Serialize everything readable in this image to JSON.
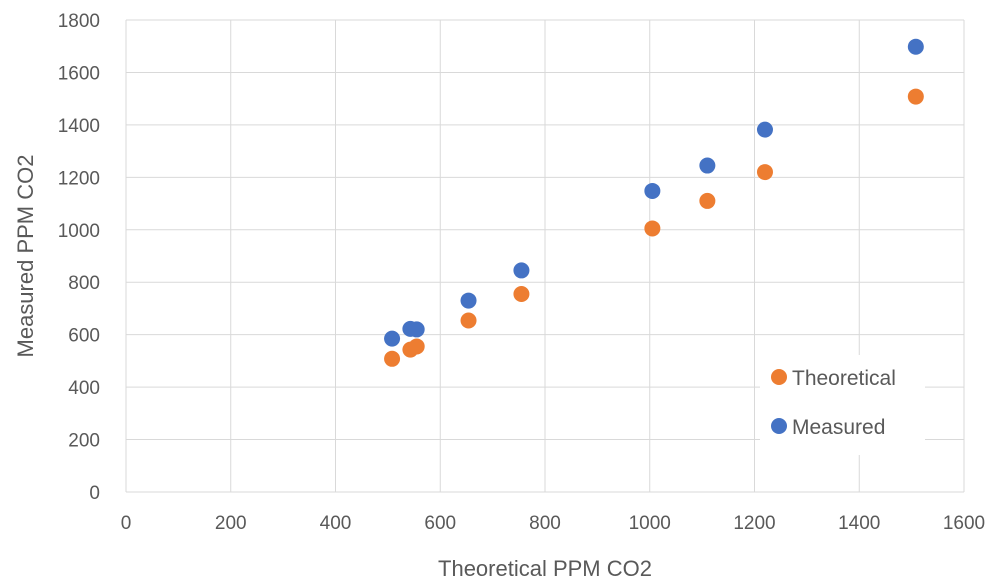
{
  "chart_data": {
    "type": "scatter",
    "title": "",
    "xlabel": "Theoretical PPM CO2",
    "ylabel": "Measured PPM CO2",
    "xlim": [
      0,
      1600
    ],
    "ylim": [
      0,
      1800
    ],
    "xticks": [
      "0",
      "200",
      "400",
      "600",
      "800",
      "1000",
      "1200",
      "1400",
      "1600"
    ],
    "yticks": [
      "0",
      "200",
      "400",
      "600",
      "800",
      "1000",
      "1200",
      "1400",
      "1600",
      "1800"
    ],
    "grid": true,
    "legend_position": "bottom-right",
    "series": [
      {
        "name": "Theoretical",
        "color": "#ED7D31",
        "points": [
          {
            "x": 508,
            "y": 508
          },
          {
            "x": 543,
            "y": 543
          },
          {
            "x": 555,
            "y": 555
          },
          {
            "x": 654,
            "y": 654
          },
          {
            "x": 755,
            "y": 755
          },
          {
            "x": 1005,
            "y": 1005
          },
          {
            "x": 1110,
            "y": 1110
          },
          {
            "x": 1220,
            "y": 1220
          },
          {
            "x": 1508,
            "y": 1508
          }
        ]
      },
      {
        "name": "Measured",
        "color": "#4472C4",
        "points": [
          {
            "x": 508,
            "y": 585
          },
          {
            "x": 543,
            "y": 622
          },
          {
            "x": 555,
            "y": 620
          },
          {
            "x": 654,
            "y": 730
          },
          {
            "x": 755,
            "y": 845
          },
          {
            "x": 1005,
            "y": 1148
          },
          {
            "x": 1110,
            "y": 1245
          },
          {
            "x": 1220,
            "y": 1382
          },
          {
            "x": 1508,
            "y": 1698
          }
        ]
      }
    ]
  }
}
